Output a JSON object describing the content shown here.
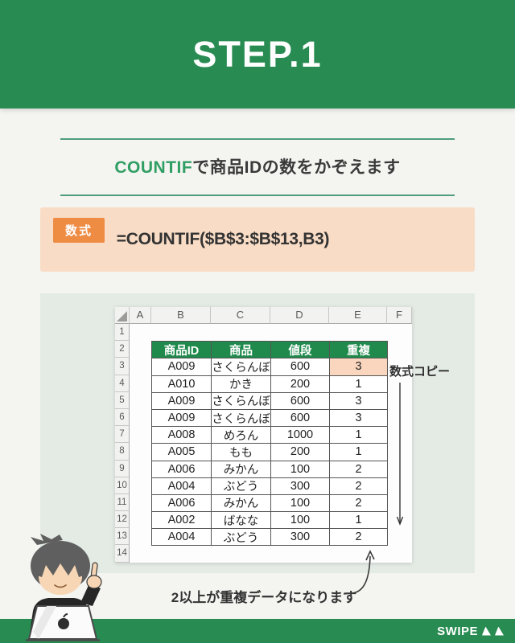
{
  "banner": {
    "title": "STEP.1"
  },
  "heading": {
    "highlight": "COUNTIF",
    "rest": "で商品IDの数をかぞえます"
  },
  "formula": {
    "badge": "数式",
    "text": "=COUNTIF($B$3:$B$13,B3)"
  },
  "sheet": {
    "column_headers": [
      "A",
      "B",
      "C",
      "D",
      "E",
      "F"
    ],
    "row_numbers": [
      "1",
      "2",
      "3",
      "4",
      "5",
      "6",
      "7",
      "8",
      "9",
      "10",
      "11",
      "12",
      "13",
      "14"
    ],
    "table": {
      "headers": [
        "商品ID",
        "商品",
        "値段",
        "重複"
      ],
      "rows": [
        [
          "A009",
          "さくらんぼ",
          "600",
          "3"
        ],
        [
          "A010",
          "かき",
          "200",
          "1"
        ],
        [
          "A009",
          "さくらんぼ",
          "600",
          "3"
        ],
        [
          "A009",
          "さくらんぼ",
          "600",
          "3"
        ],
        [
          "A008",
          "めろん",
          "1000",
          "1"
        ],
        [
          "A005",
          "もも",
          "200",
          "1"
        ],
        [
          "A006",
          "みかん",
          "100",
          "2"
        ],
        [
          "A004",
          "ぶどう",
          "300",
          "2"
        ],
        [
          "A006",
          "みかん",
          "100",
          "2"
        ],
        [
          "A002",
          "ばなな",
          "100",
          "1"
        ],
        [
          "A004",
          "ぶどう",
          "300",
          "2"
        ]
      ],
      "highlight_cell": {
        "row_index": 0,
        "col_index": 3
      }
    }
  },
  "annotations": {
    "copy_label": "数式コピー",
    "caption": "2以上が重複データになります"
  },
  "footer": {
    "swipe": "SWIPE"
  },
  "chart_data": {
    "type": "table",
    "title": "COUNTIFで商品IDの数をかぞえます",
    "columns": [
      "商品ID",
      "商品",
      "値段",
      "重複"
    ],
    "rows": [
      [
        "A009",
        "さくらんぼ",
        600,
        3
      ],
      [
        "A010",
        "かき",
        200,
        1
      ],
      [
        "A009",
        "さくらんぼ",
        600,
        3
      ],
      [
        "A009",
        "さくらんぼ",
        600,
        3
      ],
      [
        "A008",
        "めろん",
        1000,
        1
      ],
      [
        "A005",
        "もも",
        200,
        1
      ],
      [
        "A006",
        "みかん",
        100,
        2
      ],
      [
        "A004",
        "ぶどう",
        300,
        2
      ],
      [
        "A006",
        "みかん",
        100,
        2
      ],
      [
        "A002",
        "ばなな",
        100,
        1
      ],
      [
        "A004",
        "ぶどう",
        300,
        2
      ]
    ]
  },
  "colors": {
    "banner_green": "#288c52",
    "table_header_green": "#1f8a4c",
    "accent_text_green": "#2f9e63",
    "formula_box_bg": "#f8dcc5",
    "badge_orange": "#ee8c44",
    "highlight_cell_bg": "#fbd6bf",
    "panel_bg": "#e4ebe5"
  }
}
